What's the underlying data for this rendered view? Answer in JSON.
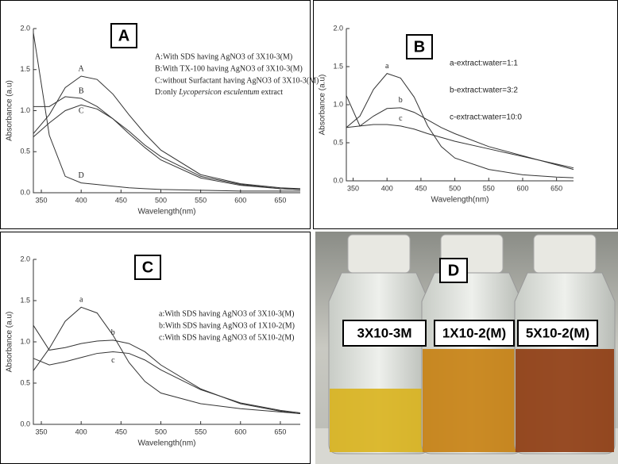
{
  "chart_data": [
    {
      "type": "line",
      "title": "A",
      "x_label": "Wavelength(nm)",
      "y_label": "Absorbance (a.u)",
      "x": [
        340,
        360,
        380,
        400,
        420,
        440,
        460,
        480,
        500,
        550,
        600,
        650,
        675
      ],
      "series": [
        {
          "name": "A",
          "color": "#333333",
          "values": [
            0.72,
            0.95,
            1.28,
            1.42,
            1.38,
            1.2,
            0.95,
            0.72,
            0.52,
            0.22,
            0.11,
            0.06,
            0.05
          ]
        },
        {
          "name": "B",
          "color": "#333333",
          "values": [
            1.05,
            1.05,
            1.17,
            1.15,
            1.05,
            0.9,
            0.72,
            0.55,
            0.4,
            0.18,
            0.09,
            0.05,
            0.04
          ]
        },
        {
          "name": "C",
          "color": "#333333",
          "values": [
            0.68,
            0.85,
            1.0,
            1.07,
            1.02,
            0.9,
            0.75,
            0.58,
            0.44,
            0.2,
            0.1,
            0.05,
            0.04
          ]
        },
        {
          "name": "D",
          "color": "#333333",
          "values": [
            1.95,
            0.7,
            0.2,
            0.12,
            0.1,
            0.08,
            0.06,
            0.05,
            0.04,
            0.03,
            0.02,
            0.02,
            0.02
          ]
        }
      ],
      "notes": [
        "A:With SDS having AgNO3 of 3X10-3(M)",
        "B:With TX-100 having AgNO3 of 3X10-3(M)",
        "C:without Surfactant having AgNO3 of 3X10-3(M)",
        [
          "D:only ",
          "Lycopersicon esculentum",
          " extract"
        ]
      ],
      "xlim": [
        340,
        675
      ],
      "xticks": [
        350,
        400,
        450,
        500,
        550,
        600,
        650
      ],
      "ylim": [
        0,
        2.0
      ],
      "yticks": [
        {
          "value": 0,
          "label": "0.0"
        },
        {
          "value": 0.5,
          "label": "0.5"
        },
        {
          "value": 1.0,
          "label": "1.0"
        },
        {
          "value": 1.5,
          "label": "1.5"
        },
        {
          "value": 2.0,
          "label": "2.0"
        }
      ]
    },
    {
      "type": "line",
      "title": "B",
      "x_label": "Wavelength(nm)",
      "y_label": "Absorbance (a.u)",
      "x": [
        340,
        360,
        380,
        400,
        420,
        440,
        460,
        480,
        500,
        550,
        600,
        650,
        675
      ],
      "series": [
        {
          "name": "a",
          "color": "#333333",
          "values": [
            0.7,
            0.85,
            1.2,
            1.41,
            1.35,
            1.1,
            0.72,
            0.45,
            0.3,
            0.15,
            0.08,
            0.05,
            0.04
          ]
        },
        {
          "name": "b",
          "color": "#333333",
          "values": [
            1.12,
            0.72,
            0.85,
            0.95,
            0.96,
            0.9,
            0.8,
            0.7,
            0.62,
            0.45,
            0.33,
            0.21,
            0.15
          ]
        },
        {
          "name": "c",
          "color": "#333333",
          "values": [
            0.7,
            0.72,
            0.74,
            0.74,
            0.72,
            0.68,
            0.62,
            0.57,
            0.52,
            0.42,
            0.32,
            0.22,
            0.17
          ]
        }
      ],
      "notes": [
        "a-extract:water=1:1",
        "b-extract:water=3:2",
        "c-extract:water=10:0"
      ],
      "xlim": [
        340,
        675
      ],
      "xticks": [
        350,
        400,
        450,
        500,
        550,
        600,
        650
      ],
      "ylim": [
        0,
        2.0
      ],
      "yticks": [
        {
          "value": 0,
          "label": "0.0"
        },
        {
          "value": 0.5,
          "label": "0.5"
        },
        {
          "value": 1.0,
          "label": "1.0"
        },
        {
          "value": 1.5,
          "label": "1.5"
        },
        {
          "value": 2.0,
          "label": "2.0"
        }
      ]
    },
    {
      "type": "line",
      "title": "C",
      "x_label": "Wavelength(nm)",
      "y_label": "Absorbance (a.u)",
      "x": [
        340,
        360,
        380,
        400,
        420,
        440,
        460,
        480,
        500,
        550,
        600,
        650,
        675
      ],
      "series": [
        {
          "name": "a",
          "color": "#333333",
          "values": [
            0.65,
            0.92,
            1.25,
            1.42,
            1.35,
            1.08,
            0.75,
            0.52,
            0.38,
            0.25,
            0.19,
            0.15,
            0.13
          ]
        },
        {
          "name": "b",
          "color": "#333333",
          "values": [
            1.2,
            0.9,
            0.93,
            0.98,
            1.01,
            1.02,
            0.98,
            0.88,
            0.72,
            0.43,
            0.25,
            0.16,
            0.13
          ]
        },
        {
          "name": "c",
          "color": "#333333",
          "values": [
            0.8,
            0.72,
            0.76,
            0.81,
            0.86,
            0.88,
            0.86,
            0.78,
            0.66,
            0.42,
            0.26,
            0.17,
            0.14
          ]
        }
      ],
      "notes": [
        "a:With SDS having AgNO3 of 3X10-3(M)",
        "b:With SDS having AgNO3 of 1X10-2(M)",
        "c:With SDS having AgNO3 of 5X10-2(M)"
      ],
      "xlim": [
        340,
        675
      ],
      "xticks": [
        350,
        400,
        450,
        500,
        550,
        600,
        650
      ],
      "ylim": [
        0,
        2.0
      ],
      "yticks": [
        {
          "value": 0,
          "label": "0.0"
        },
        {
          "value": 0.5,
          "label": "0.5"
        },
        {
          "value": 1.0,
          "label": "1.0"
        },
        {
          "value": 1.5,
          "label": "1.5"
        },
        {
          "value": 2.0,
          "label": "2.0"
        }
      ]
    }
  ],
  "photo": {
    "title": "D",
    "labels": [
      "3X10-3M",
      "1X10-2(M)",
      "5X10-2(M)"
    ]
  }
}
